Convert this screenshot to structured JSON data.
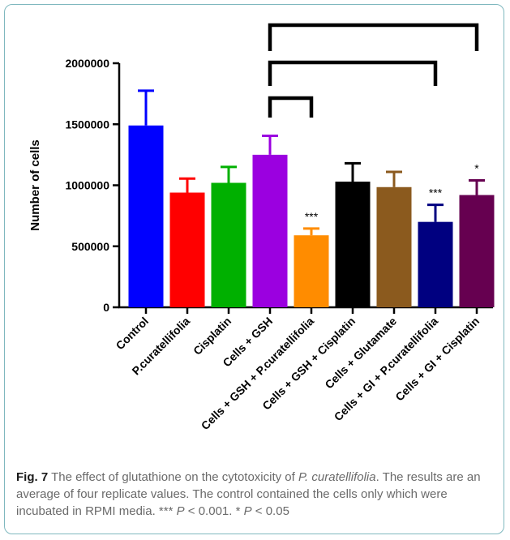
{
  "chart_data": {
    "type": "bar",
    "ylabel": "Number of cells",
    "xlabel": "",
    "ylim": [
      0,
      2000000
    ],
    "yticks": [
      "0",
      "500000",
      "1000000",
      "1500000",
      "2000000"
    ],
    "ytick_values": [
      0,
      500000,
      1000000,
      1500000,
      2000000
    ],
    "grid": false,
    "categories": [
      "Control",
      "P.curatellifolia",
      "Cisplatin",
      "Cells + GSH",
      "Cells + GSH + P.curatellifolia",
      "Cells + GSH + Cisplatin",
      "Cells + Glutamate",
      "Cells + GI + P.curatellifolia",
      "Cells + GI + Cisplatin"
    ],
    "values": [
      1490000,
      940000,
      1020000,
      1250000,
      590000,
      1030000,
      985000,
      700000,
      920000
    ],
    "errors": [
      285000,
      115000,
      130000,
      155000,
      55000,
      150000,
      125000,
      140000,
      120000
    ],
    "colors": [
      "#0000ff",
      "#ff0000",
      "#00b000",
      "#9b00e0",
      "#ff8c00",
      "#000000",
      "#8b5a1e",
      "#000080",
      "#660050"
    ],
    "significance": [
      "",
      "",
      "",
      "",
      "***",
      "",
      "",
      "***",
      "*"
    ],
    "brackets": [
      {
        "from": 3,
        "to": 4
      },
      {
        "from": 3,
        "to": 7
      },
      {
        "from": 3,
        "to": 8
      }
    ]
  },
  "caption": {
    "label": "Fig. 7",
    "text_1": " The effect of glutathione on the cytotoxicity of ",
    "species": "P. curatellifolia",
    "text_2": ". The results are an average of four replicate values. The control contained the cells only which were incubated in RPMI media. *** ",
    "p1": "P",
    "text_3": " < 0.001. * ",
    "p2": "P",
    "text_4": " < 0.05"
  }
}
